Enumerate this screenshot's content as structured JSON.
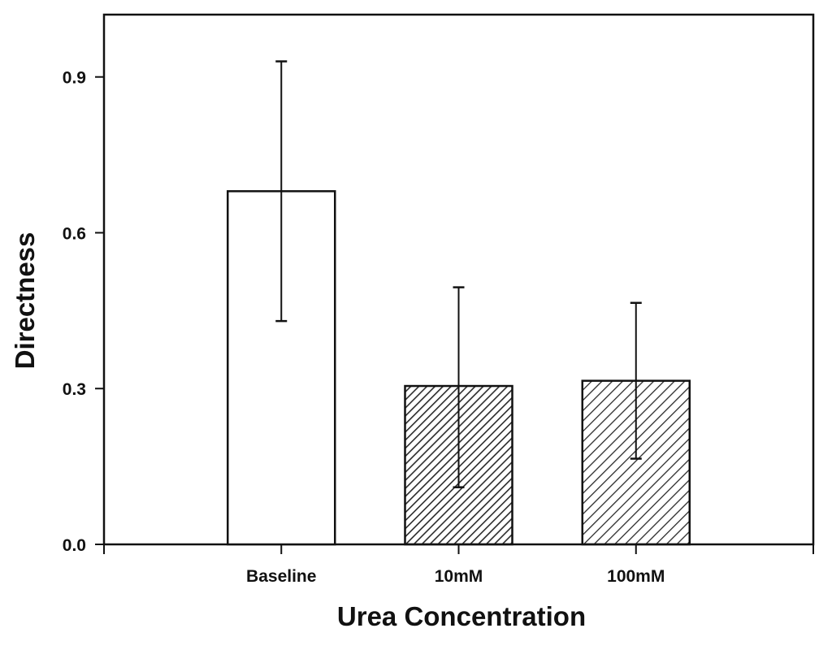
{
  "chart_data": {
    "type": "bar",
    "title": "",
    "xlabel": "Urea Concentration",
    "ylabel": "Directness",
    "categories": [
      "Baseline",
      "10mM",
      "100mM"
    ],
    "values": [
      0.68,
      0.305,
      0.315
    ],
    "error_upper": [
      0.93,
      0.495,
      0.465
    ],
    "error_lower": [
      0.43,
      0.11,
      0.165
    ],
    "ylim": [
      0.0,
      1.02
    ],
    "xlim": [
      0.0,
      4.0
    ],
    "yticks": [
      0.0,
      0.3,
      0.6,
      0.9
    ],
    "ytick_labels": [
      "0.0",
      "0.3",
      "0.6",
      "0.9"
    ],
    "fills": [
      "none",
      "dense-hatch",
      "sparse-hatch"
    ],
    "grid": false,
    "legend": "none",
    "colors": {
      "axis": "#111111",
      "bar_fill": "#ffffff",
      "hatch": "#2a2a2a"
    }
  }
}
